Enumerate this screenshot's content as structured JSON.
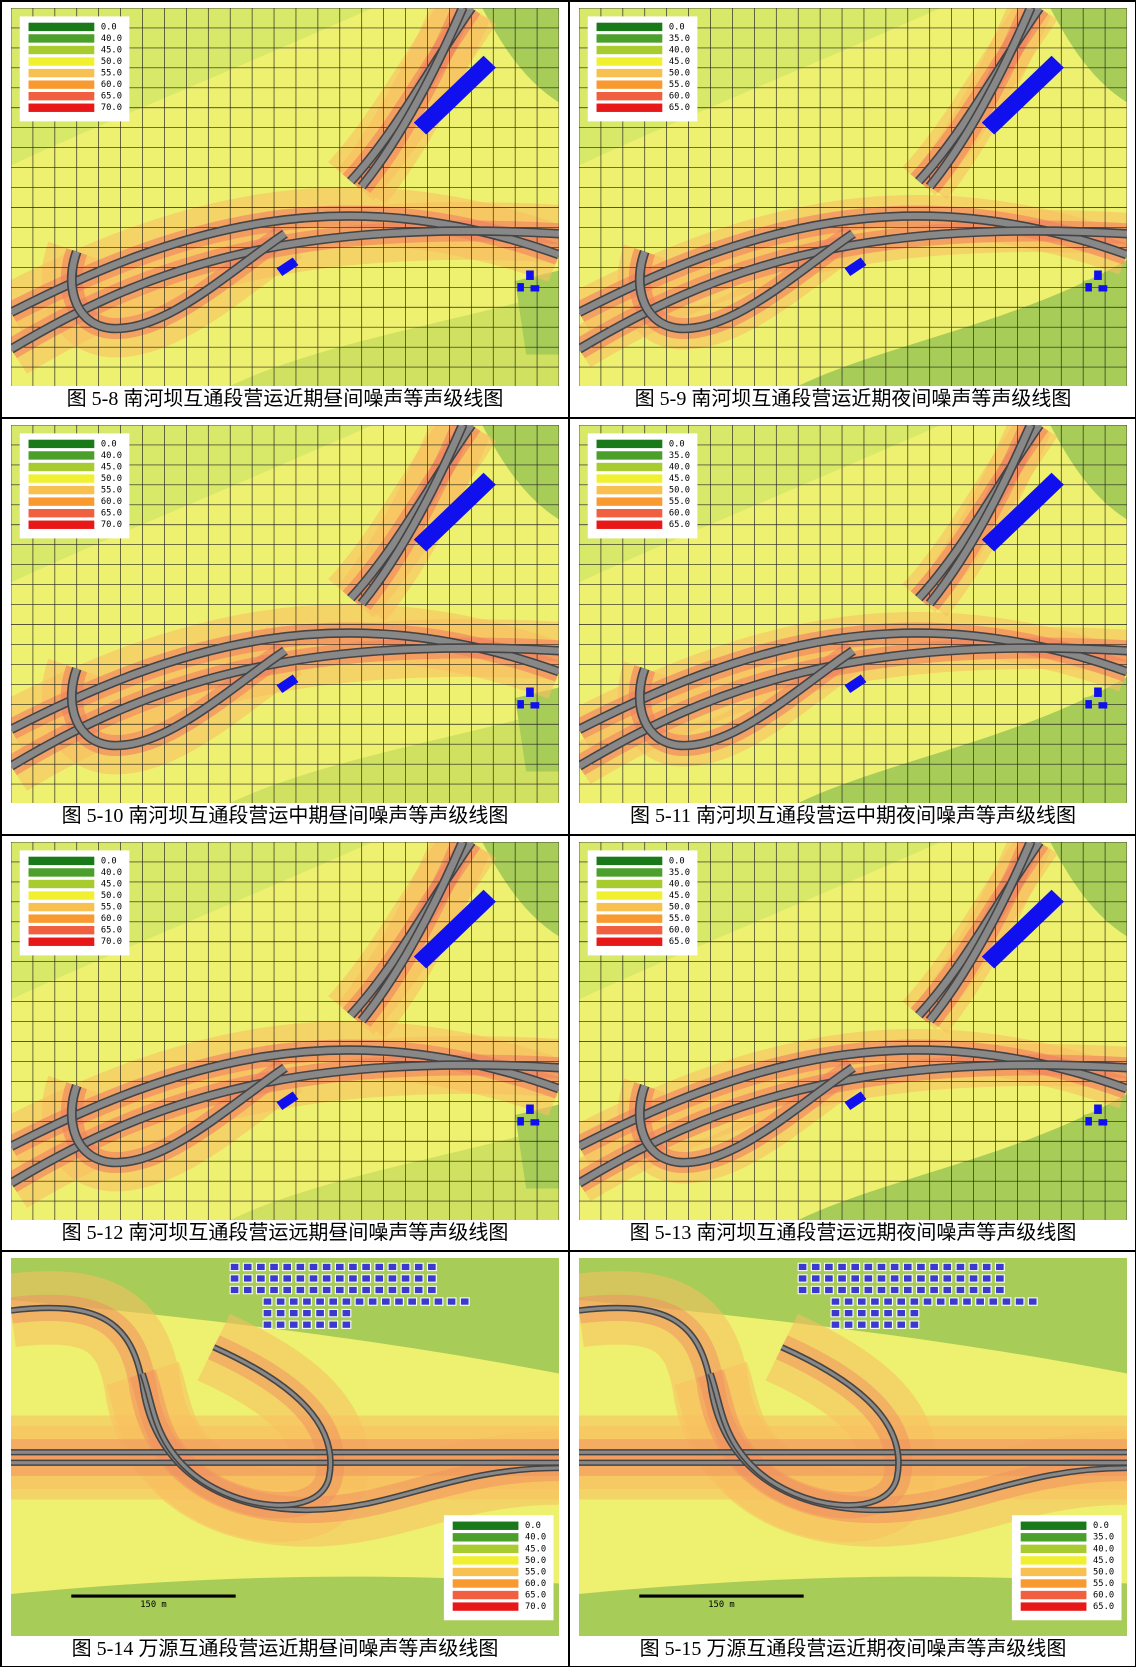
{
  "panels": [
    {
      "caption": "图 5-8  南河坝互通段营运近期昼间噪声等声级线图",
      "legend": [
        "0.0",
        "40.0",
        "45.0",
        "50.0",
        "55.0",
        "60.0",
        "65.0",
        "70.0"
      ]
    },
    {
      "caption": "图 5-9  南河坝互通段营运近期夜间噪声等声级线图",
      "legend": [
        "0.0",
        "35.0",
        "40.0",
        "45.0",
        "50.0",
        "55.0",
        "60.0",
        "65.0"
      ]
    },
    {
      "caption": "图 5-10 南河坝互通段营运中期昼间噪声等声级线图",
      "legend": [
        "0.0",
        "40.0",
        "45.0",
        "50.0",
        "55.0",
        "60.0",
        "65.0",
        "70.0"
      ]
    },
    {
      "caption": "图 5-11 南河坝互通段营运中期夜间噪声等声级线图",
      "legend": [
        "0.0",
        "35.0",
        "40.0",
        "45.0",
        "50.0",
        "55.0",
        "60.0",
        "65.0"
      ]
    },
    {
      "caption": "图 5-12 南河坝互通段营运远期昼间噪声等声级线图",
      "legend": [
        "0.0",
        "40.0",
        "45.0",
        "50.0",
        "55.0",
        "60.0",
        "65.0",
        "70.0"
      ]
    },
    {
      "caption": "图 5-13 南河坝互通段营运远期夜间噪声等声级线图",
      "legend": [
        "0.0",
        "35.0",
        "40.0",
        "45.0",
        "50.0",
        "55.0",
        "60.0",
        "65.0"
      ]
    },
    {
      "caption": "图 5-14 万源互通段营运近期昼间噪声等声级线图",
      "legend": [
        "0.0",
        "40.0",
        "45.0",
        "50.0",
        "55.0",
        "60.0",
        "65.0",
        "70.0"
      ],
      "scale_bar": "150 m"
    },
    {
      "caption": "图 5-15  万源互通段营运近期夜间噪声等声级线图",
      "legend": [
        "0.0",
        "35.0",
        "40.0",
        "45.0",
        "50.0",
        "55.0",
        "60.0",
        "65.0"
      ],
      "scale_bar": "150 m"
    }
  ]
}
